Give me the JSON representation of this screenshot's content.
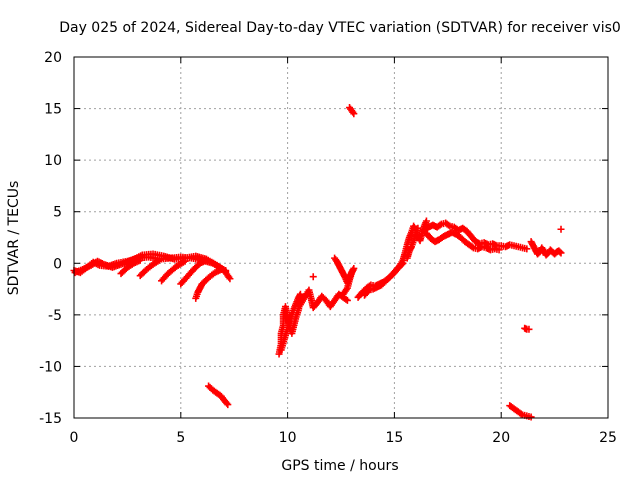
{
  "chart_data": {
    "type": "scatter",
    "title": "Day 025 of 2024, Sidereal Day-to-day VTEC variation (SDTVAR) for receiver vis0",
    "xlabel": "GPS time / hours",
    "ylabel": "SDTVAR / TECUs",
    "xlim": [
      0,
      25
    ],
    "ylim": [
      -15,
      20
    ],
    "x_ticks": [
      0,
      5,
      10,
      15,
      20,
      25
    ],
    "x_tick_labels": [
      "0",
      "5",
      "10",
      "15",
      "20",
      "25"
    ],
    "y_ticks": [
      -15,
      -10,
      -5,
      0,
      5,
      10,
      15,
      20
    ],
    "y_tick_labels": [
      "-15",
      "-10",
      "-5",
      "0",
      "5",
      "10",
      "15",
      "20"
    ],
    "grid": true,
    "marker": "+",
    "color": "#ff0000",
    "segments": [
      {
        "points": [
          [
            0.0,
            -0.7
          ],
          [
            0.3,
            -0.9
          ],
          [
            0.6,
            -0.4
          ],
          [
            0.9,
            0.1
          ],
          [
            1.2,
            -0.2
          ],
          [
            1.6,
            -0.3
          ],
          [
            2.0,
            0.0
          ],
          [
            2.5,
            0.2
          ],
          [
            3.0,
            0.5
          ],
          [
            3.5,
            0.6
          ],
          [
            4.0,
            0.4
          ],
          [
            4.5,
            0.5
          ],
          [
            5.0,
            0.6
          ],
          [
            5.5,
            0.5
          ],
          [
            6.0,
            0.3
          ],
          [
            6.5,
            0.0
          ],
          [
            7.0,
            -0.6
          ],
          [
            7.3,
            -1.5
          ]
        ]
      },
      {
        "points": [
          [
            0.05,
            -0.9
          ],
          [
            0.4,
            -0.6
          ],
          [
            0.8,
            -0.2
          ],
          [
            1.1,
            0.2
          ],
          [
            1.4,
            -0.1
          ],
          [
            1.8,
            -0.4
          ],
          [
            2.2,
            -0.1
          ],
          [
            2.7,
            0.3
          ],
          [
            3.2,
            0.8
          ],
          [
            3.7,
            0.9
          ],
          [
            4.2,
            0.7
          ],
          [
            4.7,
            0.4
          ],
          [
            5.2,
            0.5
          ],
          [
            5.7,
            0.7
          ],
          [
            6.2,
            0.4
          ],
          [
            6.7,
            -0.2
          ],
          [
            7.1,
            -0.8
          ]
        ]
      },
      {
        "points": [
          [
            2.2,
            -1.0
          ],
          [
            2.5,
            -0.4
          ],
          [
            2.8,
            0.0
          ],
          [
            3.1,
            0.3
          ]
        ]
      },
      {
        "points": [
          [
            3.1,
            -1.2
          ],
          [
            3.4,
            -0.6
          ],
          [
            3.7,
            -0.1
          ],
          [
            4.0,
            0.3
          ]
        ]
      },
      {
        "points": [
          [
            4.1,
            -1.7
          ],
          [
            4.4,
            -1.0
          ],
          [
            4.8,
            -0.3
          ],
          [
            5.2,
            0.2
          ]
        ]
      },
      {
        "points": [
          [
            5.0,
            -2.0
          ],
          [
            5.3,
            -1.3
          ],
          [
            5.6,
            -0.6
          ],
          [
            5.9,
            0.0
          ],
          [
            6.2,
            0.3
          ]
        ]
      },
      {
        "points": [
          [
            5.7,
            -3.4
          ],
          [
            5.8,
            -2.8
          ],
          [
            5.9,
            -2.4
          ],
          [
            6.0,
            -2.0
          ],
          [
            6.3,
            -1.4
          ],
          [
            6.6,
            -0.9
          ],
          [
            6.9,
            -0.6
          ],
          [
            7.1,
            -0.7
          ]
        ]
      },
      {
        "points": [
          [
            6.3,
            -11.9
          ],
          [
            6.5,
            -12.3
          ],
          [
            6.7,
            -12.6
          ],
          [
            6.9,
            -12.9
          ],
          [
            7.0,
            -13.2
          ],
          [
            7.2,
            -13.7
          ]
        ]
      },
      {
        "points": [
          [
            9.6,
            -8.8
          ],
          [
            9.7,
            -7.8
          ],
          [
            9.7,
            -6.8
          ],
          [
            9.8,
            -6.0
          ],
          [
            9.8,
            -5.0
          ],
          [
            9.9,
            -4.2
          ],
          [
            10.0,
            -5.3
          ],
          [
            10.1,
            -6.2
          ],
          [
            10.2,
            -6.8
          ],
          [
            10.3,
            -6.0
          ],
          [
            10.4,
            -5.2
          ],
          [
            10.5,
            -4.6
          ],
          [
            10.6,
            -3.6
          ],
          [
            10.6,
            -3.0
          ],
          [
            10.5,
            -3.4
          ],
          [
            10.3,
            -4.4
          ],
          [
            10.1,
            -5.6
          ],
          [
            9.9,
            -7.0
          ],
          [
            9.7,
            -8.4
          ]
        ]
      },
      {
        "points": [
          [
            10.6,
            -4.0
          ],
          [
            10.8,
            -3.3
          ],
          [
            11.0,
            -2.6
          ],
          [
            11.1,
            -3.4
          ],
          [
            11.2,
            -4.3
          ],
          [
            11.4,
            -3.8
          ],
          [
            11.6,
            -3.2
          ],
          [
            11.8,
            -3.6
          ],
          [
            12.0,
            -4.2
          ],
          [
            12.2,
            -3.6
          ],
          [
            12.4,
            -3.0
          ],
          [
            12.6,
            -3.3
          ],
          [
            12.8,
            -3.6
          ]
        ]
      },
      {
        "points": [
          [
            11.2,
            -1.3
          ]
        ]
      },
      {
        "points": [
          [
            12.2,
            0.5
          ],
          [
            12.3,
            0.2
          ],
          [
            12.4,
            -0.2
          ],
          [
            12.5,
            -0.6
          ],
          [
            12.6,
            -1.0
          ],
          [
            12.7,
            -1.4
          ],
          [
            12.8,
            -1.9
          ],
          [
            12.9,
            -1.3
          ],
          [
            13.1,
            -0.5
          ],
          [
            13.0,
            -0.9
          ],
          [
            12.9,
            -1.6
          ],
          [
            12.8,
            -2.4
          ],
          [
            12.6,
            -3.0
          ]
        ]
      },
      {
        "points": [
          [
            12.9,
            15.1
          ],
          [
            13.0,
            14.8
          ],
          [
            13.1,
            14.5
          ]
        ]
      },
      {
        "points": [
          [
            13.3,
            -3.3
          ],
          [
            13.5,
            -2.8
          ],
          [
            13.7,
            -2.4
          ],
          [
            13.9,
            -2.1
          ],
          [
            14.1,
            -2.2
          ],
          [
            14.3,
            -2.0
          ],
          [
            14.5,
            -1.8
          ],
          [
            14.7,
            -1.5
          ],
          [
            14.9,
            -1.1
          ],
          [
            15.1,
            -0.6
          ],
          [
            15.3,
            -0.2
          ],
          [
            15.4,
            0.0
          ]
        ]
      },
      {
        "points": [
          [
            13.6,
            -3.1
          ],
          [
            13.8,
            -2.6
          ],
          [
            14.0,
            -2.5
          ],
          [
            14.2,
            -2.3
          ],
          [
            14.4,
            -2.1
          ],
          [
            14.6,
            -1.7
          ],
          [
            14.8,
            -1.3
          ],
          [
            15.0,
            -0.9
          ],
          [
            15.2,
            -0.4
          ],
          [
            15.4,
            0.3
          ],
          [
            15.5,
            1.0
          ],
          [
            15.6,
            1.8
          ],
          [
            15.7,
            2.5
          ],
          [
            15.8,
            3.0
          ],
          [
            15.9,
            3.6
          ],
          [
            16.0,
            3.2
          ],
          [
            16.1,
            2.6
          ],
          [
            16.2,
            2.2
          ],
          [
            16.3,
            2.9
          ],
          [
            16.4,
            3.6
          ],
          [
            16.5,
            4.1
          ]
        ]
      },
      {
        "points": [
          [
            15.6,
            0.5
          ],
          [
            15.7,
            1.2
          ],
          [
            15.8,
            1.6
          ],
          [
            15.9,
            2.2
          ],
          [
            16.0,
            2.8
          ],
          [
            16.1,
            3.4
          ]
        ]
      },
      {
        "points": [
          [
            16.4,
            3.2
          ],
          [
            16.6,
            3.5
          ],
          [
            16.8,
            3.7
          ],
          [
            17.0,
            3.5
          ],
          [
            17.2,
            3.8
          ],
          [
            17.4,
            3.9
          ],
          [
            17.6,
            3.6
          ],
          [
            17.8,
            3.5
          ],
          [
            18.0,
            3.2
          ],
          [
            18.2,
            3.4
          ],
          [
            18.4,
            3.1
          ],
          [
            18.6,
            2.6
          ],
          [
            18.8,
            2.1
          ],
          [
            19.0,
            1.9
          ],
          [
            19.2,
            2.0
          ],
          [
            19.4,
            1.8
          ],
          [
            19.6,
            1.9
          ],
          [
            19.8,
            1.7
          ],
          [
            20.0,
            1.7
          ],
          [
            20.2,
            1.6
          ],
          [
            20.4,
            1.8
          ],
          [
            20.6,
            1.7
          ],
          [
            20.8,
            1.6
          ],
          [
            21.0,
            1.5
          ],
          [
            21.2,
            1.4
          ]
        ]
      },
      {
        "points": [
          [
            16.5,
            2.9
          ],
          [
            16.7,
            2.4
          ],
          [
            16.9,
            2.1
          ],
          [
            17.1,
            2.3
          ],
          [
            17.3,
            2.6
          ],
          [
            17.5,
            2.8
          ],
          [
            17.7,
            3.0
          ],
          [
            17.9,
            2.8
          ],
          [
            18.1,
            2.5
          ],
          [
            18.3,
            2.1
          ],
          [
            18.5,
            1.8
          ],
          [
            18.7,
            1.5
          ],
          [
            18.9,
            1.4
          ],
          [
            19.1,
            1.6
          ],
          [
            19.3,
            1.5
          ],
          [
            19.5,
            1.3
          ],
          [
            19.7,
            1.4
          ],
          [
            19.9,
            1.3
          ]
        ]
      },
      {
        "points": [
          [
            21.4,
            2.1
          ],
          [
            21.5,
            1.7
          ],
          [
            21.6,
            1.3
          ],
          [
            21.7,
            0.9
          ],
          [
            21.8,
            1.1
          ],
          [
            21.9,
            1.5
          ],
          [
            22.0,
            1.2
          ],
          [
            22.1,
            0.8
          ],
          [
            22.2,
            1.0
          ],
          [
            22.3,
            1.3
          ],
          [
            22.4,
            1.1
          ],
          [
            22.5,
            0.9
          ],
          [
            22.6,
            1.1
          ],
          [
            22.7,
            1.2
          ],
          [
            22.8,
            1.0
          ]
        ]
      },
      {
        "points": [
          [
            22.8,
            3.3
          ]
        ]
      },
      {
        "points": [
          [
            21.1,
            -6.3
          ],
          [
            21.2,
            -6.4
          ],
          [
            21.3,
            -6.4
          ]
        ]
      },
      {
        "points": [
          [
            20.4,
            -13.8
          ],
          [
            20.6,
            -14.1
          ],
          [
            20.8,
            -14.4
          ],
          [
            21.0,
            -14.7
          ],
          [
            21.2,
            -14.8
          ],
          [
            21.4,
            -14.9
          ]
        ]
      }
    ]
  }
}
